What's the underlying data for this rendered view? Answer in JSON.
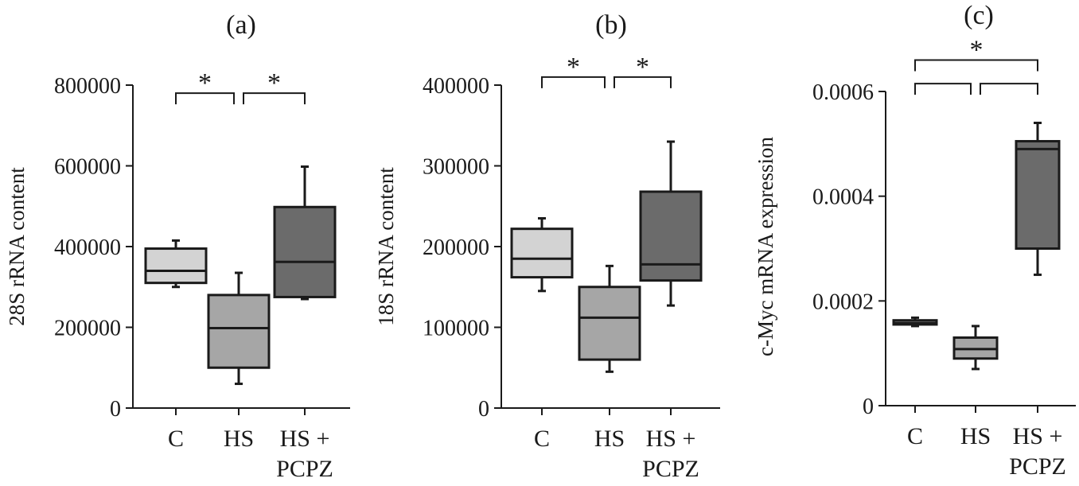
{
  "chart_data": [
    {
      "type": "box",
      "panel_label": "(a)",
      "ylabel": "28S rRNA content",
      "ylim": [
        0,
        800000
      ],
      "yticks": [
        0,
        200000,
        400000,
        600000,
        800000
      ],
      "ytick_labels": [
        "0",
        "200000",
        "400000",
        "600000",
        "800000"
      ],
      "categories": [
        "C",
        "HS",
        "HS +\nPCPZ"
      ],
      "boxes": [
        {
          "min": 300000,
          "q1": 310000,
          "median": 340000,
          "q3": 395000,
          "max": 415000,
          "color": "#d3d3d3"
        },
        {
          "min": 60000,
          "q1": 100000,
          "median": 198000,
          "q3": 280000,
          "max": 335000,
          "color": "#a6a6a6"
        },
        {
          "min": 270000,
          "q1": 275000,
          "median": 362000,
          "q3": 498000,
          "max": 598000,
          "color": "#6b6b6b"
        }
      ],
      "significance": [
        {
          "from": 0,
          "to": 1,
          "label": "*",
          "y": 780000
        },
        {
          "from": 1,
          "to": 2,
          "label": "*",
          "y": 780000
        }
      ]
    },
    {
      "type": "box",
      "panel_label": "(b)",
      "ylabel": "18S rRNA content",
      "ylim": [
        0,
        400000
      ],
      "yticks": [
        0,
        100000,
        200000,
        300000,
        400000
      ],
      "ytick_labels": [
        "0",
        "100000",
        "200000",
        "300000",
        "400000"
      ],
      "categories": [
        "C",
        "HS",
        "HS +\nPCPZ"
      ],
      "boxes": [
        {
          "min": 145000,
          "q1": 162000,
          "median": 185000,
          "q3": 222000,
          "max": 235000,
          "color": "#d3d3d3"
        },
        {
          "min": 45000,
          "q1": 60000,
          "median": 112000,
          "q3": 150000,
          "max": 176000,
          "color": "#a6a6a6"
        },
        {
          "min": 127000,
          "q1": 158000,
          "median": 178000,
          "q3": 268000,
          "max": 330000,
          "color": "#6b6b6b"
        }
      ],
      "significance": [
        {
          "from": 0,
          "to": 1,
          "label": "*",
          "y": 410000
        },
        {
          "from": 1,
          "to": 2,
          "label": "*",
          "y": 410000
        }
      ]
    },
    {
      "type": "box",
      "panel_label": "(c)",
      "ylabel": "c-Myc mRNA expression",
      "ylim": [
        0,
        0.0006
      ],
      "yticks": [
        0,
        0.0002,
        0.0004,
        0.0006
      ],
      "ytick_labels": [
        "0",
        "0.0002",
        "0.0004",
        "0.0006"
      ],
      "categories": [
        "C",
        "HS",
        "HS +\nPCPZ"
      ],
      "boxes": [
        {
          "min": 0.000152,
          "q1": 0.000155,
          "median": 0.000158,
          "q3": 0.000163,
          "max": 0.000168,
          "color": "#d3d3d3"
        },
        {
          "min": 7e-05,
          "q1": 9e-05,
          "median": 0.000108,
          "q3": 0.00013,
          "max": 0.000152,
          "color": "#a6a6a6"
        },
        {
          "min": 0.00025,
          "q1": 0.0003,
          "median": 0.00049,
          "q3": 0.000505,
          "max": 0.00054,
          "color": "#6b6b6b"
        }
      ],
      "significance": [
        {
          "from": 0,
          "to": 1,
          "label": "",
          "y": 0.000615
        },
        {
          "from": 1,
          "to": 2,
          "label": "",
          "y": 0.000615
        },
        {
          "from": 0,
          "to": 2,
          "label": "*",
          "y": 0.00066
        }
      ]
    }
  ]
}
